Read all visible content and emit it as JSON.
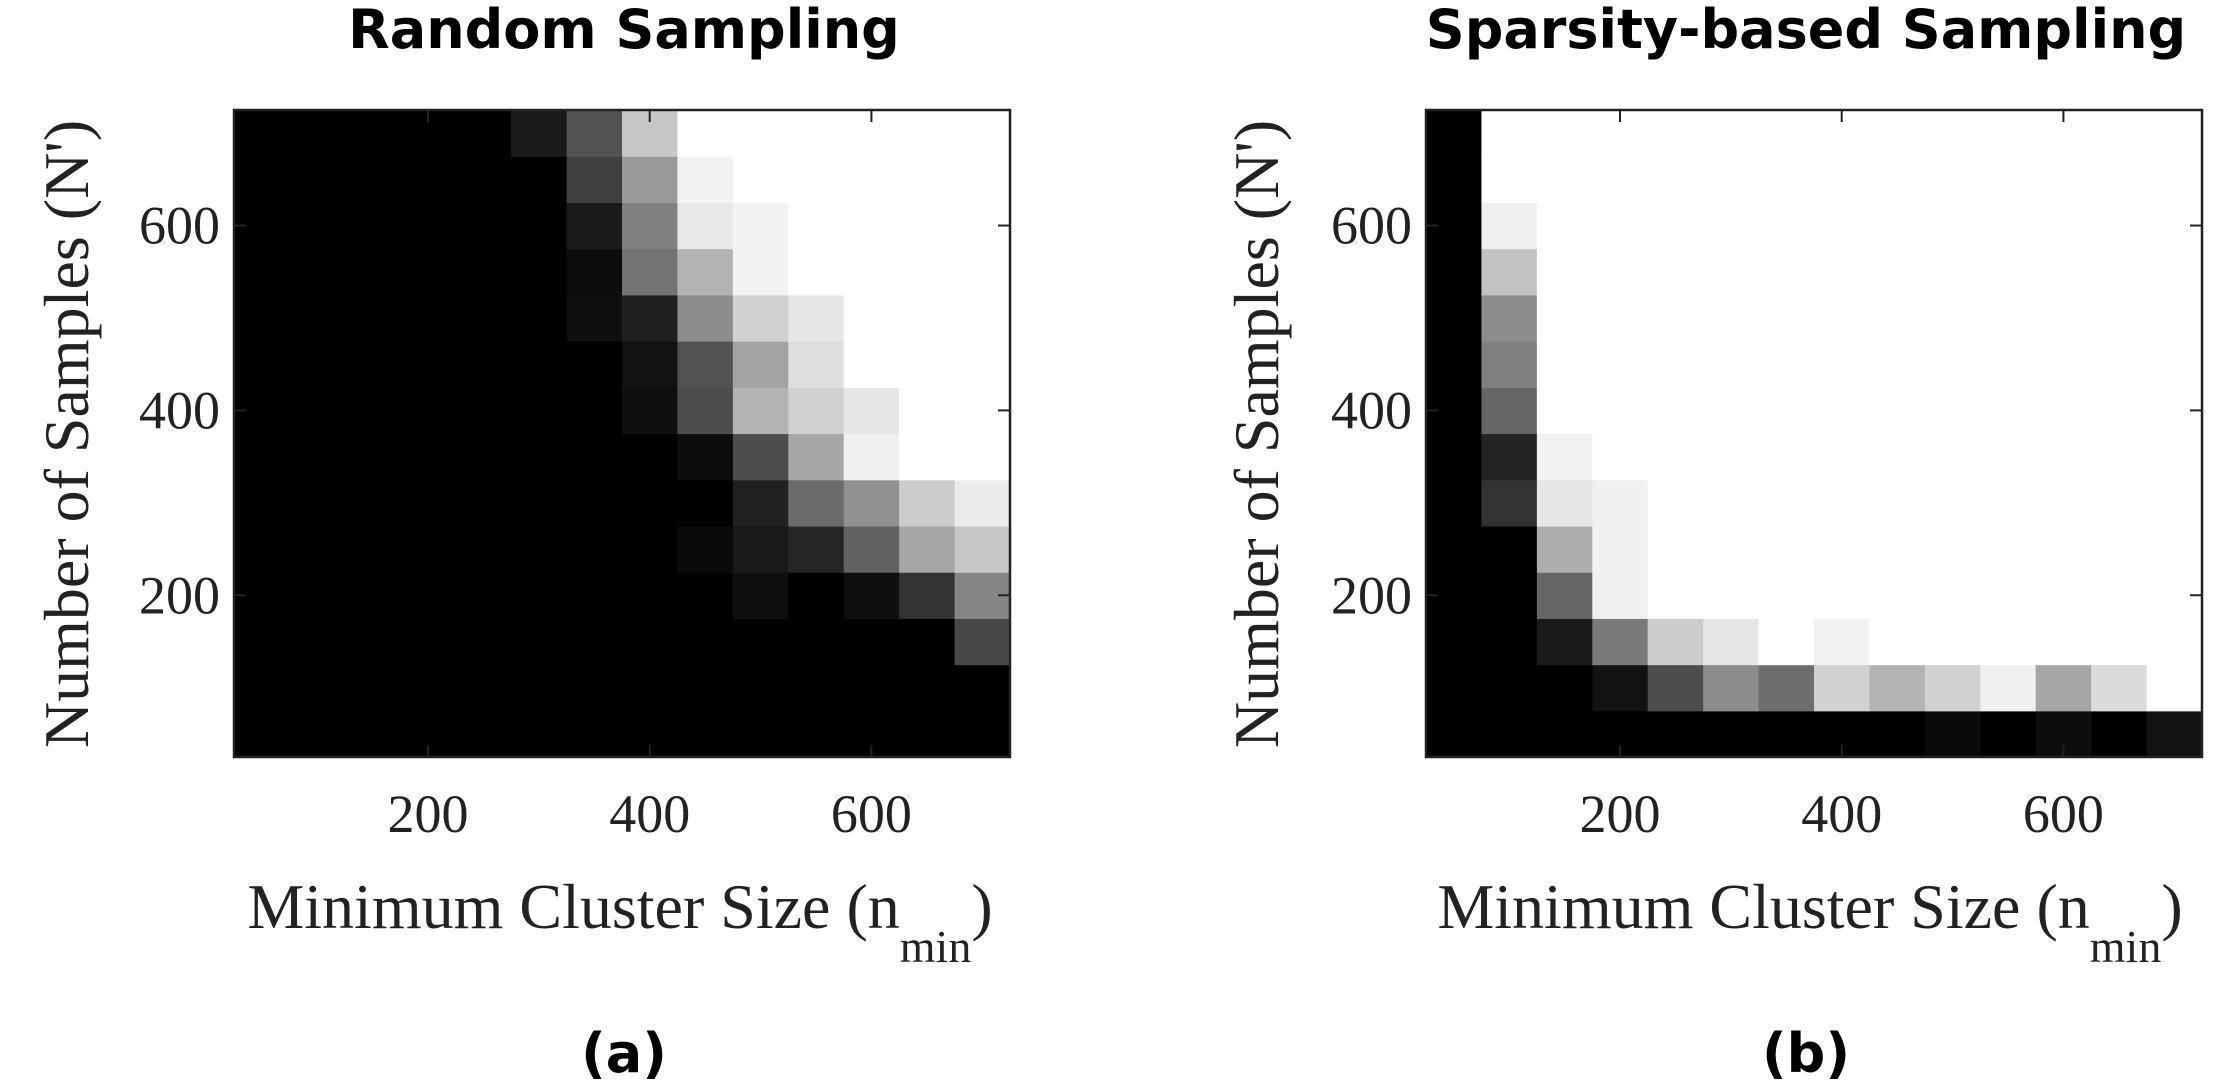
{
  "chart_data": [
    {
      "type": "heatmap",
      "title": "Random Sampling",
      "panel_label": "(a)",
      "xlabel": {
        "text": "Minimum Cluster Size (n",
        "sub": "min",
        "close": ")"
      },
      "ylabel": "Number of Samples (N')",
      "xticks": [
        "200",
        "400",
        "600"
      ],
      "yticks": [
        "200",
        "400",
        "600"
      ],
      "xlim": [
        25,
        725
      ],
      "ylim": [
        25,
        725
      ],
      "bin_size": 50,
      "colormap": "gray (0 = black, 1 = white)",
      "x": [
        50,
        100,
        150,
        200,
        250,
        300,
        350,
        400,
        450,
        500,
        550,
        600,
        650,
        700
      ],
      "y": [
        50,
        100,
        150,
        200,
        250,
        300,
        350,
        400,
        450,
        500,
        550,
        600,
        650,
        700
      ],
      "z": [
        [
          0,
          0,
          0,
          0,
          0,
          0,
          0.0,
          0.0,
          0.0,
          0.0,
          0.0,
          0.0,
          0.0,
          0.0
        ],
        [
          0,
          0,
          0,
          0,
          0,
          0,
          0.0,
          0.0,
          0.0,
          0.0,
          0.0,
          0.0,
          0.0,
          0.0
        ],
        [
          0,
          0,
          0,
          0,
          0,
          0,
          0.0,
          0.0,
          0.0,
          0.0,
          0.0,
          0.0,
          0.0,
          0.28
        ],
        [
          0,
          0,
          0,
          0,
          0,
          0,
          0.0,
          0.0,
          0.0,
          0.06,
          0.0,
          0.06,
          0.2,
          0.52
        ],
        [
          0,
          0,
          0,
          0,
          0,
          0,
          0.0,
          0.0,
          0.04,
          0.1,
          0.15,
          0.38,
          0.65,
          0.78
        ],
        [
          0,
          0,
          0,
          0,
          0,
          0,
          0.0,
          0.0,
          0.0,
          0.13,
          0.42,
          0.57,
          0.8,
          0.92
        ],
        [
          0,
          0,
          0,
          0,
          0,
          0,
          0.0,
          0.0,
          0.05,
          0.3,
          0.65,
          0.94,
          1.0,
          1.0
        ],
        [
          0,
          0,
          0,
          0,
          0,
          0,
          0.0,
          0.06,
          0.3,
          0.7,
          0.82,
          0.9,
          1.0,
          1.0
        ],
        [
          0,
          0,
          0,
          0,
          0,
          0,
          0.0,
          0.07,
          0.32,
          0.64,
          0.87,
          1.0,
          1.0,
          1.0
        ],
        [
          0,
          0,
          0,
          0,
          0,
          0,
          0.06,
          0.12,
          0.55,
          0.82,
          0.9,
          1.0,
          1.0,
          1.0
        ],
        [
          0,
          0,
          0,
          0,
          0,
          0,
          0.05,
          0.45,
          0.7,
          0.95,
          1.0,
          1.0,
          1.0,
          1.0
        ],
        [
          0,
          0,
          0,
          0,
          0,
          0,
          0.1,
          0.5,
          0.91,
          0.95,
          1.0,
          1.0,
          1.0,
          1.0
        ],
        [
          0,
          0,
          0,
          0,
          0,
          0,
          0.25,
          0.6,
          0.95,
          1.0,
          1.0,
          1.0,
          1.0,
          1.0
        ],
        [
          0,
          0,
          0,
          0,
          0,
          0.1,
          0.32,
          0.78,
          1.0,
          1.0,
          1.0,
          1.0,
          1.0,
          1.0
        ]
      ]
    },
    {
      "type": "heatmap",
      "title": "Sparsity-based Sampling",
      "panel_label": "(b)",
      "xlabel": {
        "text": "Minimum Cluster Size (n",
        "sub": "min",
        "close": ")"
      },
      "ylabel": "Number of Samples (N')",
      "xticks": [
        "200",
        "400",
        "600"
      ],
      "yticks": [
        "200",
        "400",
        "600"
      ],
      "xlim": [
        25,
        725
      ],
      "ylim": [
        25,
        725
      ],
      "bin_size": 50,
      "colormap": "gray (0 = black, 1 = white)",
      "x": [
        50,
        100,
        150,
        200,
        250,
        300,
        350,
        400,
        450,
        500,
        550,
        600,
        650,
        700
      ],
      "y": [
        50,
        100,
        150,
        200,
        250,
        300,
        350,
        400,
        450,
        500,
        550,
        600,
        650,
        700
      ],
      "z": [
        [
          0,
          0.0,
          0.0,
          0.0,
          0.0,
          0.0,
          0.0,
          0.0,
          0.0,
          0.04,
          0.0,
          0.05,
          0.0,
          0.07
        ],
        [
          0,
          0.0,
          0.0,
          0.07,
          0.3,
          0.55,
          0.43,
          0.82,
          0.7,
          0.82,
          0.94,
          0.65,
          0.86,
          1.0
        ],
        [
          0,
          0.0,
          0.1,
          0.48,
          0.8,
          0.9,
          1.0,
          0.95,
          1.0,
          1.0,
          1.0,
          1.0,
          1.0,
          1.0
        ],
        [
          0,
          0.0,
          0.4,
          0.94,
          1.0,
          1.0,
          1.0,
          1.0,
          1.0,
          1.0,
          1.0,
          1.0,
          1.0,
          1.0
        ],
        [
          0,
          0.0,
          0.68,
          0.94,
          1.0,
          1.0,
          1.0,
          1.0,
          1.0,
          1.0,
          1.0,
          1.0,
          1.0,
          1.0
        ],
        [
          0,
          0.2,
          0.9,
          0.94,
          1.0,
          1.0,
          1.0,
          1.0,
          1.0,
          1.0,
          1.0,
          1.0,
          1.0,
          1.0
        ],
        [
          0,
          0.14,
          0.95,
          1.0,
          1.0,
          1.0,
          1.0,
          1.0,
          1.0,
          1.0,
          1.0,
          1.0,
          1.0,
          1.0
        ],
        [
          0,
          0.4,
          1.0,
          1.0,
          1.0,
          1.0,
          1.0,
          1.0,
          1.0,
          1.0,
          1.0,
          1.0,
          1.0,
          1.0
        ],
        [
          0,
          0.5,
          1.0,
          1.0,
          1.0,
          1.0,
          1.0,
          1.0,
          1.0,
          1.0,
          1.0,
          1.0,
          1.0,
          1.0
        ],
        [
          0,
          0.55,
          1.0,
          1.0,
          1.0,
          1.0,
          1.0,
          1.0,
          1.0,
          1.0,
          1.0,
          1.0,
          1.0,
          1.0
        ],
        [
          0,
          0.76,
          1.0,
          1.0,
          1.0,
          1.0,
          1.0,
          1.0,
          1.0,
          1.0,
          1.0,
          1.0,
          1.0,
          1.0
        ],
        [
          0,
          0.94,
          1.0,
          1.0,
          1.0,
          1.0,
          1.0,
          1.0,
          1.0,
          1.0,
          1.0,
          1.0,
          1.0,
          1.0
        ],
        [
          0,
          1.0,
          1.0,
          1.0,
          1.0,
          1.0,
          1.0,
          1.0,
          1.0,
          1.0,
          1.0,
          1.0,
          1.0,
          1.0
        ],
        [
          0,
          1.0,
          1.0,
          1.0,
          1.0,
          1.0,
          1.0,
          1.0,
          1.0,
          1.0,
          1.0,
          1.0,
          1.0,
          1.0
        ]
      ]
    }
  ]
}
